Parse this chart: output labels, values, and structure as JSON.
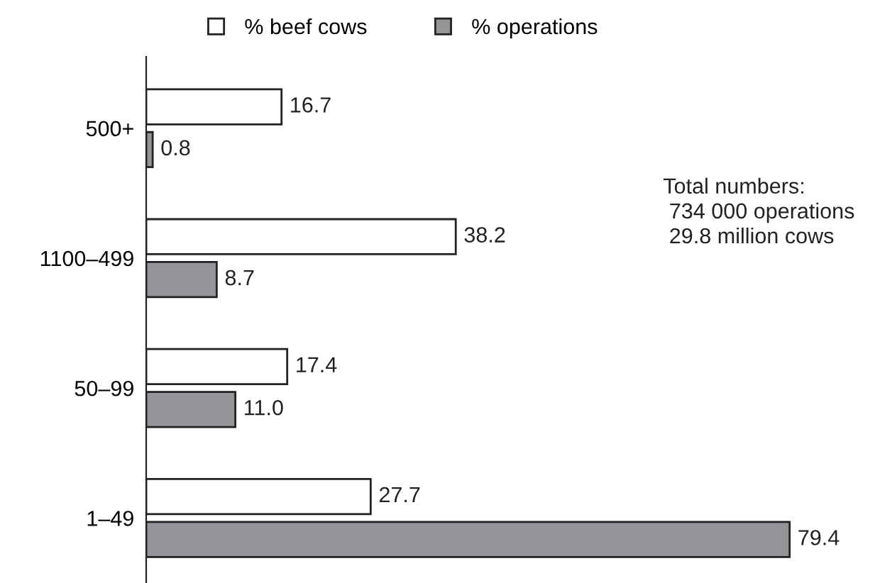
{
  "chart_data": {
    "type": "bar",
    "orientation": "horizontal",
    "categories": [
      "500+",
      "1100–499",
      "50–99",
      "1–49"
    ],
    "series": [
      {
        "name": "% beef cows",
        "color": "#ffffff",
        "values": [
          16.7,
          38.2,
          17.4,
          27.7
        ],
        "value_labels": [
          "16.7",
          "38.2",
          "17.4",
          "27.7"
        ]
      },
      {
        "name": "% operations",
        "color": "#939598",
        "values": [
          0.8,
          8.7,
          11.0,
          79.4
        ],
        "value_labels": [
          "0.8",
          "8.7",
          "11.0",
          "79.4"
        ]
      }
    ],
    "legend": "top",
    "grid": false,
    "annotations": [
      "Total numbers:\n 734 000 operations\n 29.8 million cows"
    ]
  }
}
